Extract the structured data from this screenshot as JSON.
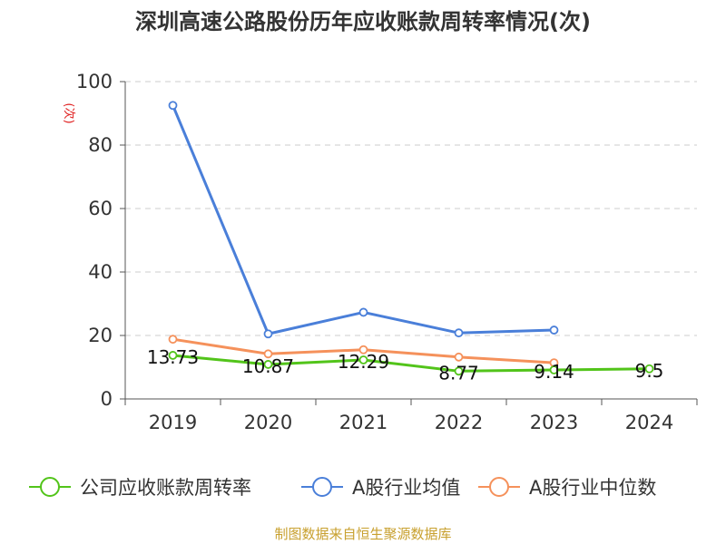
{
  "chart_data": {
    "type": "line",
    "title": "深圳高速公路股份历年应收账款周转率情况(次)",
    "ylabel": "(次)",
    "xlabel": "",
    "categories": [
      "2019",
      "2020",
      "2021",
      "2022",
      "2023",
      "2024"
    ],
    "ylim": [
      0,
      100
    ],
    "yticks": [
      0,
      20,
      40,
      60,
      80,
      100
    ],
    "grid": true,
    "legend_position": "bottom",
    "series": [
      {
        "name": "公司应收账款周转率",
        "color": "#52c41a",
        "values": [
          13.73,
          10.87,
          12.29,
          8.77,
          9.14,
          9.5
        ],
        "labels": [
          "13.73",
          "10.87",
          "12.29",
          "8.77",
          "9.14",
          "9.5"
        ]
      },
      {
        "name": "A股行业均值",
        "color": "#4a7fd9",
        "values": [
          92.5,
          20.5,
          27.3,
          20.8,
          21.7,
          null
        ]
      },
      {
        "name": "A股行业中位数",
        "color": "#f5915b",
        "values": [
          18.8,
          14.2,
          15.5,
          13.2,
          11.4,
          null
        ]
      }
    ],
    "source": "制图数据来自恒生聚源数据库",
    "source_color": "#c8a02e",
    "ylabel_color": "#e02020"
  }
}
